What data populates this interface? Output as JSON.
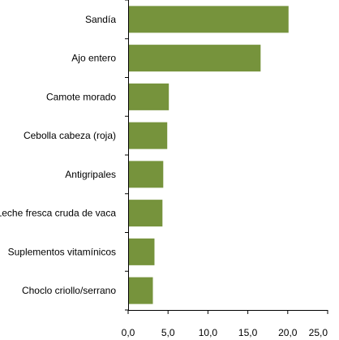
{
  "chart_data": {
    "type": "bar",
    "orientation": "horizontal",
    "categories": [
      "Sandía",
      "Ajo entero",
      "Camote morado",
      "Cebolla cabeza (roja)",
      "Antigripales",
      "Leche fresca cruda de vaca",
      "Suplementos vitamínicos",
      "Choclo criollo/serrano"
    ],
    "values": [
      20.1,
      16.6,
      5.1,
      4.9,
      4.4,
      4.3,
      3.3,
      3.1
    ],
    "xlim": [
      0,
      25
    ],
    "x_ticks": [
      "0,0",
      "5,0",
      "10,0",
      "15,0",
      "20,0",
      "25,0"
    ],
    "grid": false,
    "legend": "none",
    "bar_color": "#76933c",
    "title": "",
    "xlabel": "",
    "ylabel": ""
  }
}
